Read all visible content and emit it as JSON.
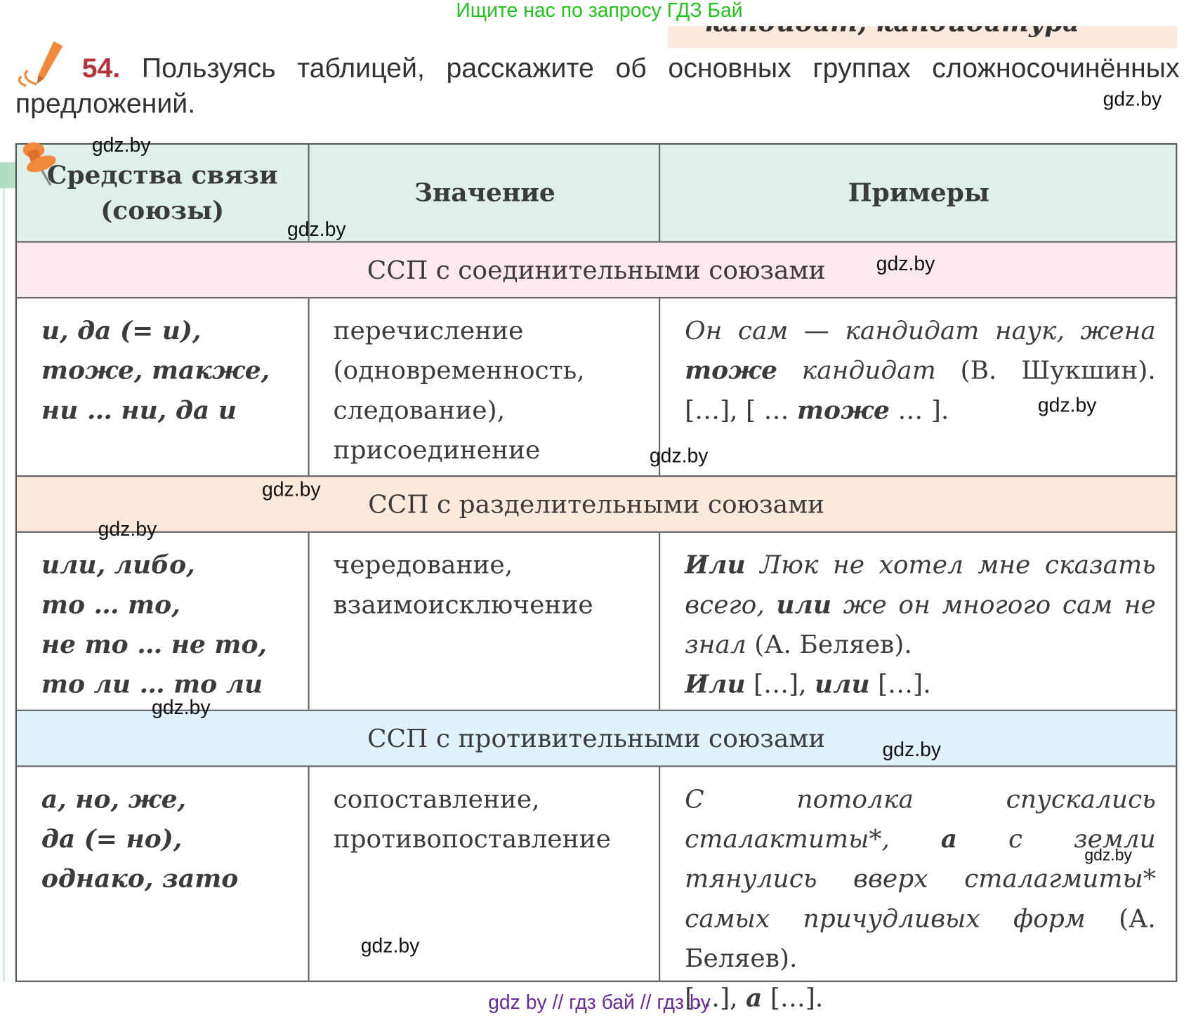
{
  "banner_top": "Ищите нас по запросу ГДЗ Бай",
  "cut_text": "кандидат, кандидатура",
  "task": {
    "number": "54.",
    "text": "Пользуясь таблицей, расскажите об основных группах сложносочинённых предложений."
  },
  "table": {
    "headers": [
      "Средства связи (союзы)",
      "Значение",
      "Примеры"
    ],
    "groups": [
      {
        "title": "ССП с соединительными союзами",
        "color": "#fce8f0",
        "conjunctions": [
          "и, да (= и),",
          "тоже, также,",
          "ни … ни, да и"
        ],
        "meaning": "перечисление (одновременность, следование), присоединение",
        "example": [
          {
            "t": "Он сам — кандидат наук, жена ",
            "s": "it"
          },
          {
            "t": "тоже",
            "s": "bi"
          },
          {
            "t": " кандидат",
            "s": "it"
          },
          {
            "t": " (В. Шукшин). […], [ … ",
            "s": "n"
          },
          {
            "t": "тоже",
            "s": "bi"
          },
          {
            "t": " … ].",
            "s": "n"
          }
        ]
      },
      {
        "title": "ССП с разделительными союзами",
        "color": "#fde9dc",
        "conjunctions": [
          "или, либо,",
          "то … то,",
          "не то … не то,",
          "то ли … то ли"
        ],
        "meaning": "чередование, взаимоисключение",
        "example": [
          {
            "t": "Или",
            "s": "bi"
          },
          {
            "t": " Люк не хотел мне сказать всего, ",
            "s": "it"
          },
          {
            "t": "или",
            "s": "bi"
          },
          {
            "t": " же он многого сам не знал",
            "s": "it"
          },
          {
            "t": " (А. Беляев).",
            "s": "n"
          },
          {
            "t": "",
            "s": "br"
          },
          {
            "t": "Или",
            "s": "bi"
          },
          {
            "t": " […], ",
            "s": "n"
          },
          {
            "t": "или",
            "s": "bi"
          },
          {
            "t": " […].",
            "s": "n"
          }
        ]
      },
      {
        "title": "ССП с противительными союзами",
        "color": "#e0f2fb",
        "conjunctions": [
          "а, но, же,",
          "да (= но),",
          "однако, зато"
        ],
        "meaning": "сопоставление, противопоставление",
        "example": [
          {
            "t": "С потолка спускались сталактиты*, ",
            "s": "it"
          },
          {
            "t": "а",
            "s": "bi"
          },
          {
            "t": " с земли тянулись вверх сталагмиты* самых причудливых форм",
            "s": "it"
          },
          {
            "t": " (А. Беляев).",
            "s": "n"
          },
          {
            "t": "",
            "s": "br"
          },
          {
            "t": "[…], ",
            "s": "n"
          },
          {
            "t": "а",
            "s": "bi"
          },
          {
            "t": " […].",
            "s": "n"
          }
        ]
      }
    ]
  },
  "watermark": "gdz.by",
  "banner_bottom": "gdz by  //  гдз бай  //  гдз by"
}
